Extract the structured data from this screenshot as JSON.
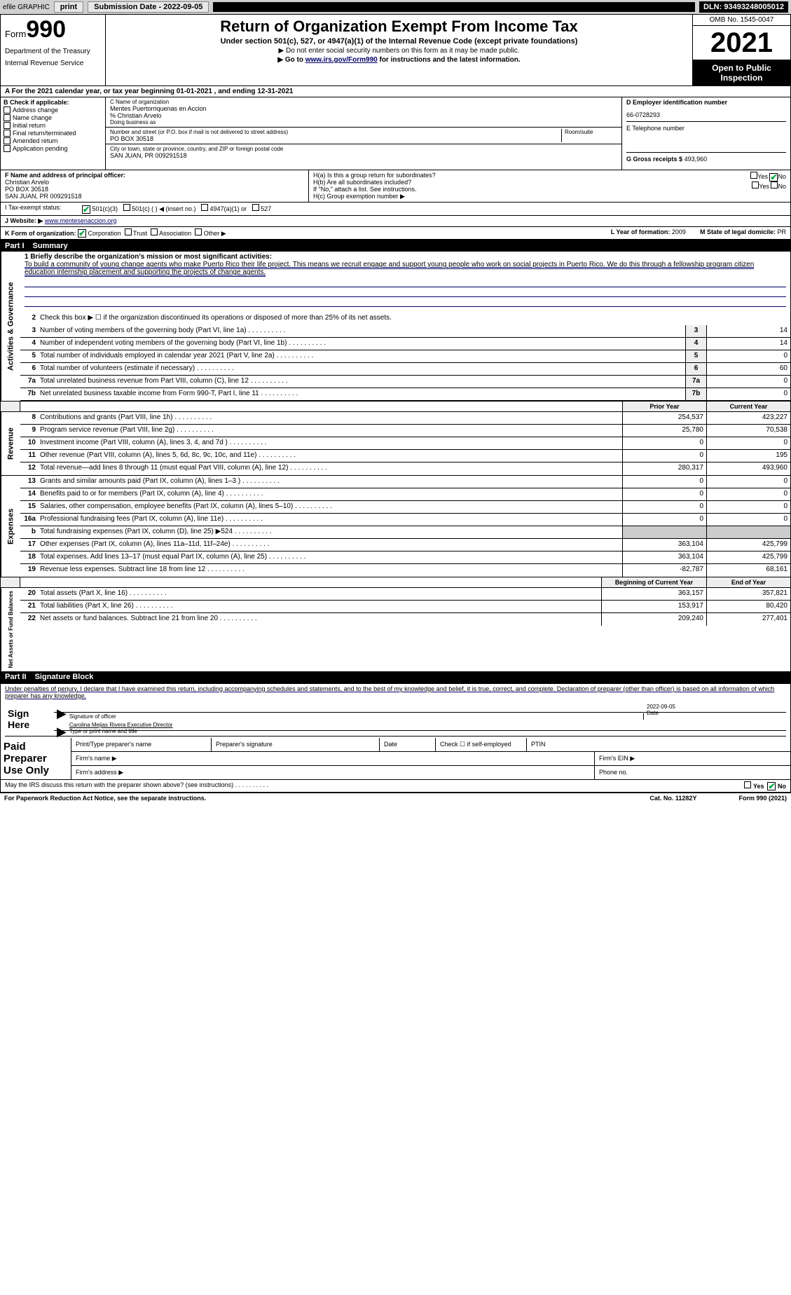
{
  "top_bar": {
    "efile": "efile GRAPHIC",
    "print": "print",
    "submission": "Submission Date - 2022-09-05",
    "dln": "DLN: 93493248005012"
  },
  "header": {
    "form_prefix": "Form",
    "form_num": "990",
    "dept": "Department of the Treasury",
    "irs": "Internal Revenue Service",
    "title": "Return of Organization Exempt From Income Tax",
    "sub1": "Under section 501(c), 527, or 4947(a)(1) of the Internal Revenue Code (except private foundations)",
    "sub2": "▶ Do not enter social security numbers on this form as it may be made public.",
    "sub3_pre": "▶ Go to ",
    "sub3_link": "www.irs.gov/Form990",
    "sub3_post": " for instructions and the latest information.",
    "omb": "OMB No. 1545-0047",
    "year": "2021",
    "otp": "Open to Public Inspection"
  },
  "row_a": "A For the 2021 calendar year, or tax year beginning 01-01-2021    , and ending 12-31-2021",
  "section_b": {
    "label": "B Check if applicable:",
    "opts": [
      "Address change",
      "Name change",
      "Initial return",
      "Final return/terminated",
      "Amended return",
      "Application pending"
    ]
  },
  "section_c": {
    "name_lbl": "C Name of organization",
    "name_val": "Mentes Puertorriquenas en Accion",
    "care_of": "% Christian Arvelo",
    "dba_lbl": "Doing business as",
    "street_lbl": "Number and street (or P.O. box if mail is not delivered to street address)",
    "room_lbl": "Room/suite",
    "street_val": "PO BOX 30518",
    "city_lbl": "City or town, state or province, country, and ZIP or foreign postal code",
    "city_val": "SAN JUAN, PR  009291518"
  },
  "section_d": {
    "ein_lbl": "D Employer identification number",
    "ein_val": "66-0728293",
    "tel_lbl": "E Telephone number",
    "gross_lbl": "G Gross receipts $",
    "gross_val": "493,960"
  },
  "section_f": {
    "lbl": "F Name and address of principal officer:",
    "name": "Christian Arvelo",
    "addr1": "PO BOX 30518",
    "addr2": "SAN JUAN, PR  009291518"
  },
  "section_h": {
    "ha": "H(a)  Is this a group return for subordinates?",
    "hb": "H(b)  Are all subordinates included?",
    "hb_note": "If \"No,\" attach a list. See instructions.",
    "hc": "H(c)  Group exemption number ▶",
    "yes": "Yes",
    "no": "No"
  },
  "row_i": {
    "lbl": "I  Tax-exempt status:",
    "opts": [
      "501(c)(3)",
      "501(c) (  ) ◀ (insert no.)",
      "4947(a)(1) or",
      "527"
    ]
  },
  "row_j": {
    "lbl": "J  Website: ▶",
    "url": "www.mentesenaccion.org"
  },
  "row_k": {
    "lbl": "K Form of organization:",
    "opts": [
      "Corporation",
      "Trust",
      "Association",
      "Other ▶"
    ],
    "l_lbl": "L Year of formation:",
    "l_val": "2009",
    "m_lbl": "M State of legal domicile:",
    "m_val": "PR"
  },
  "part1": {
    "num": "Part I",
    "title": "Summary"
  },
  "tabs": {
    "ag": "Activities & Governance",
    "rev": "Revenue",
    "exp": "Expenses",
    "nab": "Net Assets or Fund Balances"
  },
  "mission": {
    "lbl": "1  Briefly describe the organization's mission or most significant activities:",
    "text": "To build a community of young change agents who make Puerto Rico their life project. This means we recruit engage and support young people who work on social projects in Puerto Rico. We do this through a fellowship program citizen education internship placement and supporting the projects of change agents."
  },
  "line2": "Check this box ▶ ☐  if the organization discontinued its operations or disposed of more than 25% of its net assets.",
  "gov_lines": [
    {
      "n": "3",
      "d": "Number of voting members of the governing body (Part VI, line 1a)",
      "box": "3",
      "v": "14"
    },
    {
      "n": "4",
      "d": "Number of independent voting members of the governing body (Part VI, line 1b)",
      "box": "4",
      "v": "14"
    },
    {
      "n": "5",
      "d": "Total number of individuals employed in calendar year 2021 (Part V, line 2a)",
      "box": "5",
      "v": "0"
    },
    {
      "n": "6",
      "d": "Total number of volunteers (estimate if necessary)",
      "box": "6",
      "v": "60"
    },
    {
      "n": "7a",
      "d": "Total unrelated business revenue from Part VIII, column (C), line 12",
      "box": "7a",
      "v": "0"
    },
    {
      "n": "7b",
      "d": "Net unrelated business taxable income from Form 990-T, Part I, line 11",
      "box": "7b",
      "v": "0"
    }
  ],
  "col_heads": {
    "py": "Prior Year",
    "cy": "Current Year"
  },
  "rev_lines": [
    {
      "n": "8",
      "d": "Contributions and grants (Part VIII, line 1h)",
      "py": "254,537",
      "cy": "423,227"
    },
    {
      "n": "9",
      "d": "Program service revenue (Part VIII, line 2g)",
      "py": "25,780",
      "cy": "70,538"
    },
    {
      "n": "10",
      "d": "Investment income (Part VIII, column (A), lines 3, 4, and 7d )",
      "py": "0",
      "cy": "0"
    },
    {
      "n": "11",
      "d": "Other revenue (Part VIII, column (A), lines 5, 6d, 8c, 9c, 10c, and 11e)",
      "py": "0",
      "cy": "195"
    },
    {
      "n": "12",
      "d": "Total revenue—add lines 8 through 11 (must equal Part VIII, column (A), line 12)",
      "py": "280,317",
      "cy": "493,960"
    }
  ],
  "exp_lines": [
    {
      "n": "13",
      "d": "Grants and similar amounts paid (Part IX, column (A), lines 1–3 )",
      "py": "0",
      "cy": "0"
    },
    {
      "n": "14",
      "d": "Benefits paid to or for members (Part IX, column (A), line 4)",
      "py": "0",
      "cy": "0"
    },
    {
      "n": "15",
      "d": "Salaries, other compensation, employee benefits (Part IX, column (A), lines 5–10)",
      "py": "0",
      "cy": "0"
    },
    {
      "n": "16a",
      "d": "Professional fundraising fees (Part IX, column (A), line 11e)",
      "py": "0",
      "cy": "0"
    },
    {
      "n": "b",
      "d": "Total fundraising expenses (Part IX, column (D), line 25) ▶524",
      "py": "",
      "cy": ""
    },
    {
      "n": "17",
      "d": "Other expenses (Part IX, column (A), lines 11a–11d, 11f–24e)",
      "py": "363,104",
      "cy": "425,799"
    },
    {
      "n": "18",
      "d": "Total expenses. Add lines 13–17 (must equal Part IX, column (A), line 25)",
      "py": "363,104",
      "cy": "425,799"
    },
    {
      "n": "19",
      "d": "Revenue less expenses. Subtract line 18 from line 12",
      "py": "-82,787",
      "cy": "68,161"
    }
  ],
  "nab_heads": {
    "b": "Beginning of Current Year",
    "e": "End of Year"
  },
  "nab_lines": [
    {
      "n": "20",
      "d": "Total assets (Part X, line 16)",
      "py": "363,157",
      "cy": "357,821"
    },
    {
      "n": "21",
      "d": "Total liabilities (Part X, line 26)",
      "py": "153,917",
      "cy": "80,420"
    },
    {
      "n": "22",
      "d": "Net assets or fund balances. Subtract line 21 from line 20",
      "py": "209,240",
      "cy": "277,401"
    }
  ],
  "part2": {
    "num": "Part II",
    "title": "Signature Block"
  },
  "sig": {
    "decl": "Under penalties of perjury, I declare that I have examined this return, including accompanying schedules and statements, and to the best of my knowledge and belief, it is true, correct, and complete. Declaration of preparer (other than officer) is based on all information of which preparer has any knowledge.",
    "sign_here": "Sign Here",
    "sig_officer": "Signature of officer",
    "date": "Date",
    "date_val": "2022-09-05",
    "name_title": "Carolina Mejias Rivera  Executive Director",
    "type_name": "Type or print name and title"
  },
  "paid": {
    "lbl": "Paid Preparer Use Only",
    "print_name": "Print/Type preparer's name",
    "prep_sig": "Preparer's signature",
    "date": "Date",
    "check_if": "Check ☐ if self-employed",
    "ptin": "PTIN",
    "firm_name": "Firm's name  ▶",
    "firm_ein": "Firm's EIN ▶",
    "firm_addr": "Firm's address ▶",
    "phone": "Phone no."
  },
  "footer": {
    "q": "May the IRS discuss this return with the preparer shown above? (see instructions)",
    "paperwork": "For Paperwork Reduction Act Notice, see the separate instructions.",
    "cat": "Cat. No. 11282Y",
    "form": "Form 990 (2021)"
  }
}
